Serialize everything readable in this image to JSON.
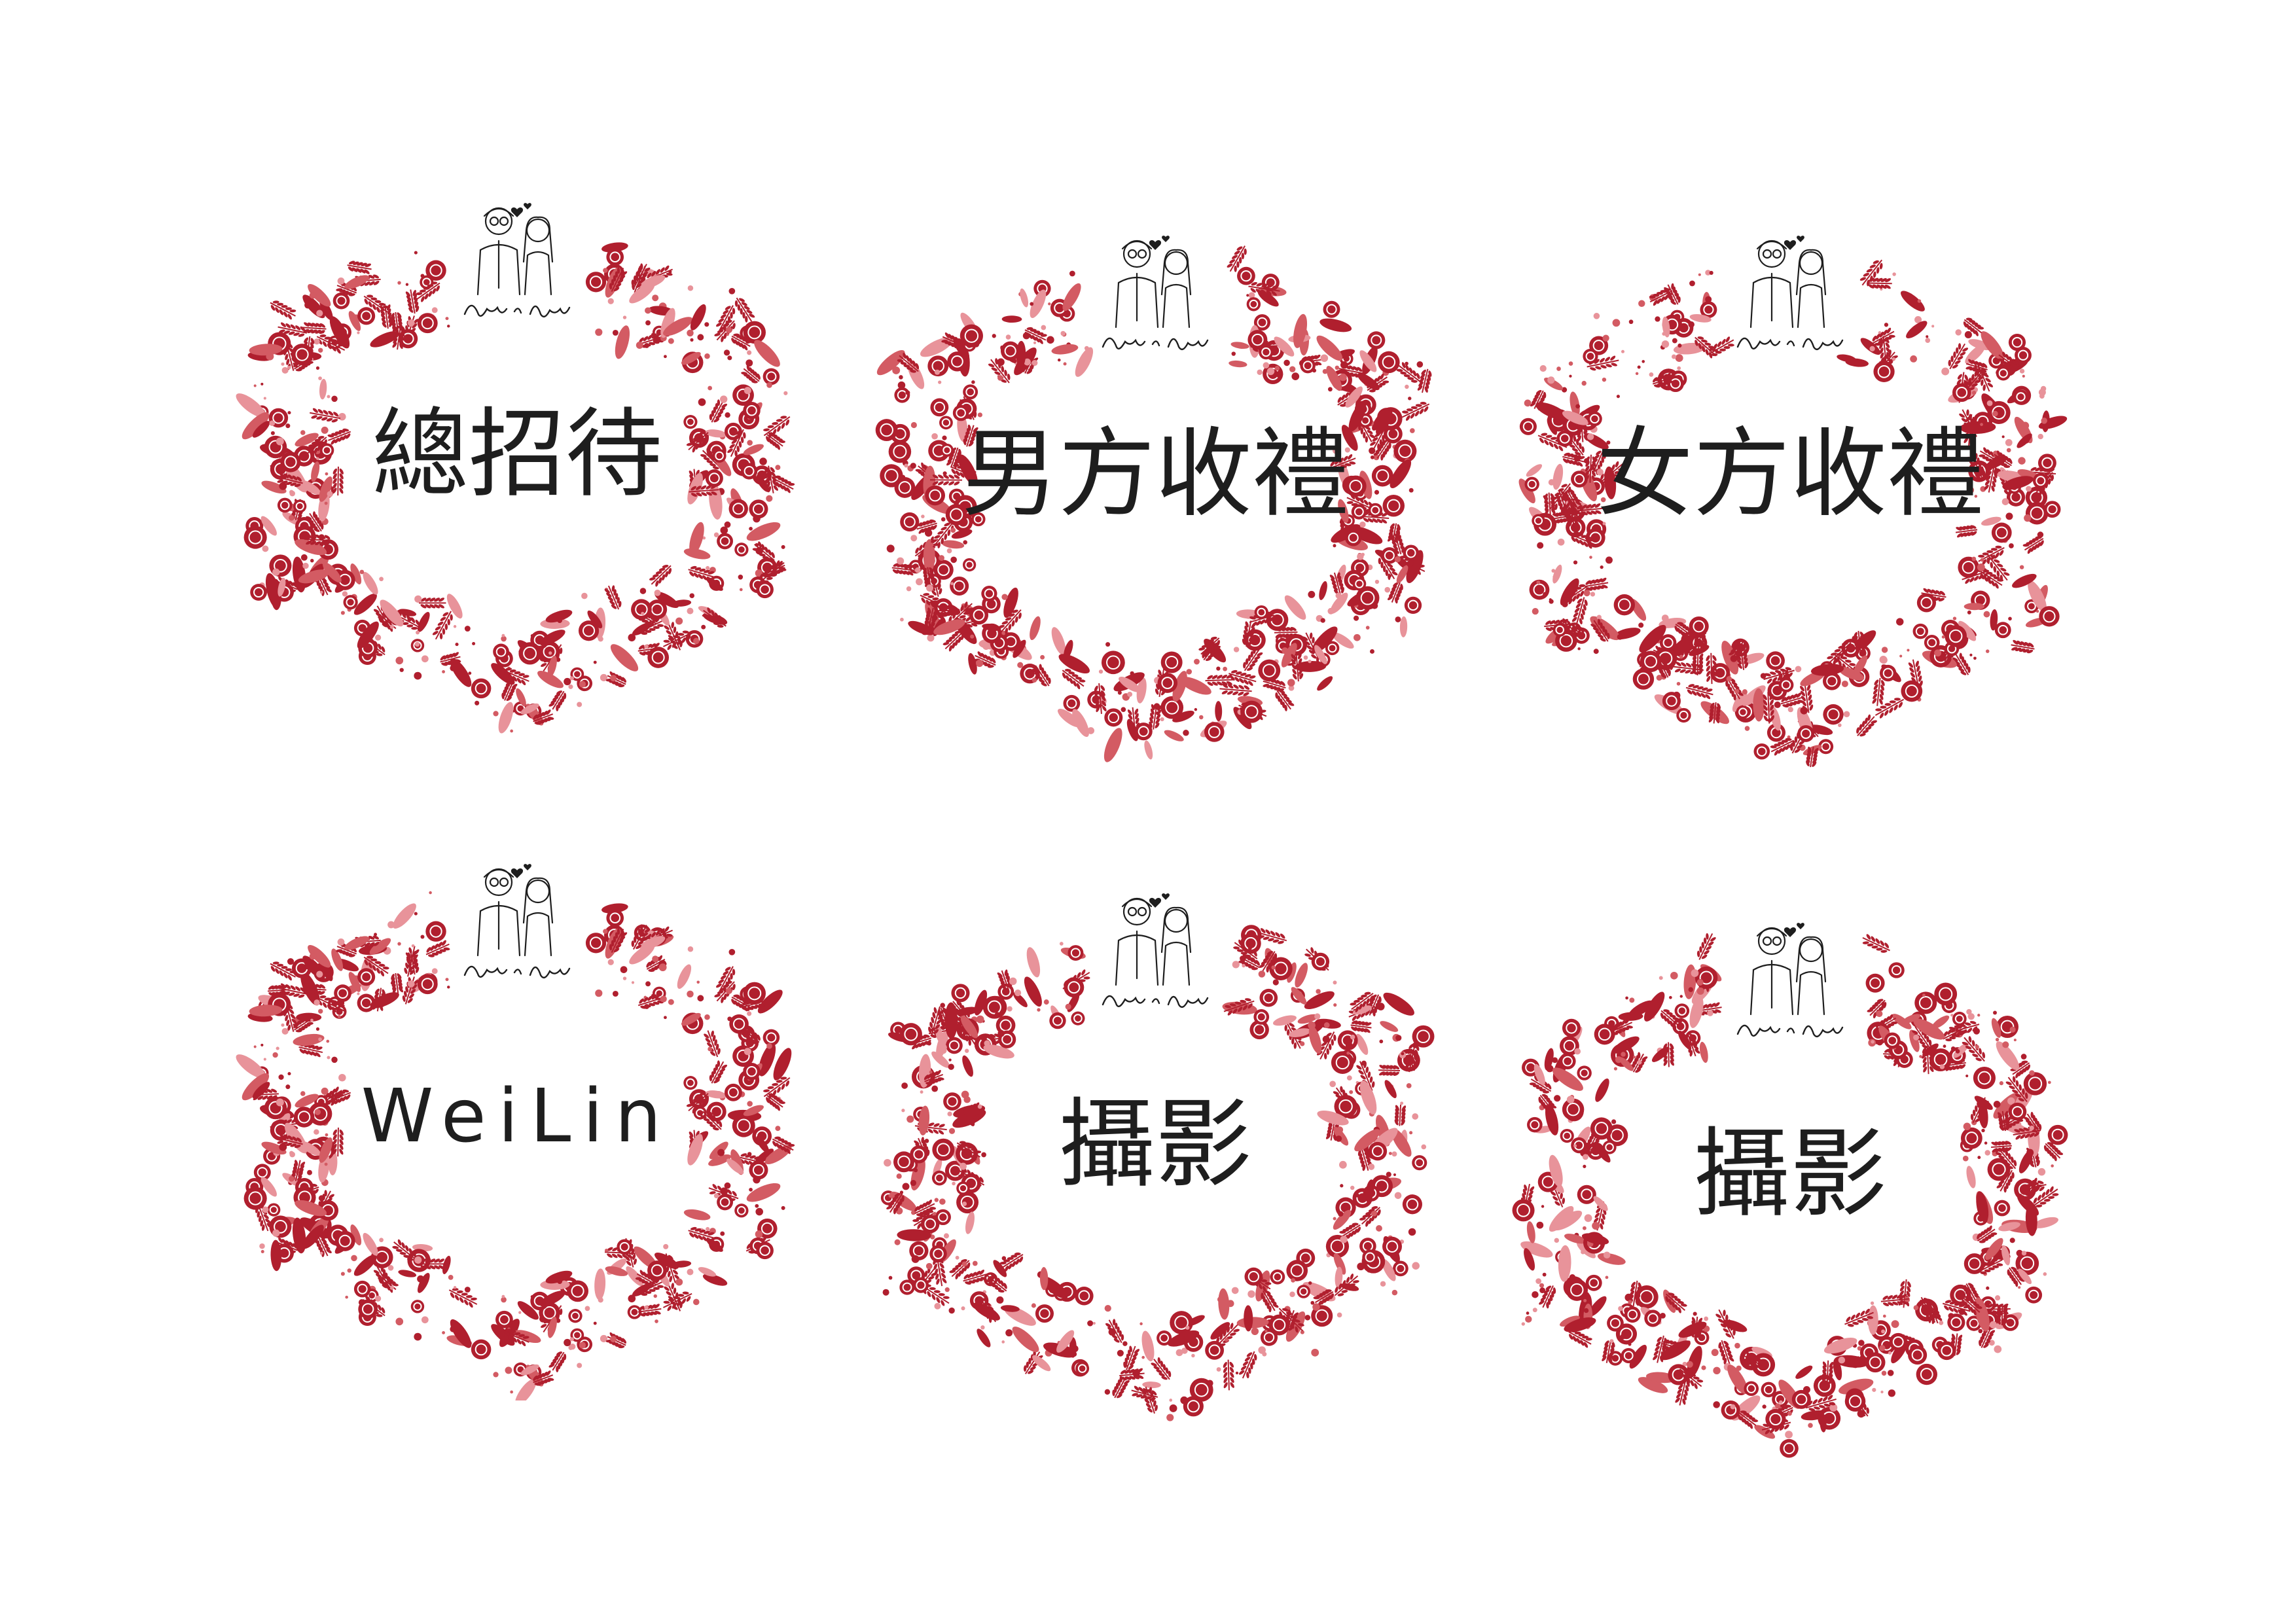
{
  "signature": "Julie & Jimmy",
  "colors": {
    "primary": "#b01f2e",
    "secondary": "#d35b63",
    "light": "#e8939a",
    "text": "#1e1e1e"
  },
  "labels": [
    {
      "text": "總招待"
    },
    {
      "text": "男方收禮"
    },
    {
      "text": "女方收禮"
    },
    {
      "text": "WeiLin"
    },
    {
      "text": "攝影"
    },
    {
      "text": "攝影"
    }
  ]
}
